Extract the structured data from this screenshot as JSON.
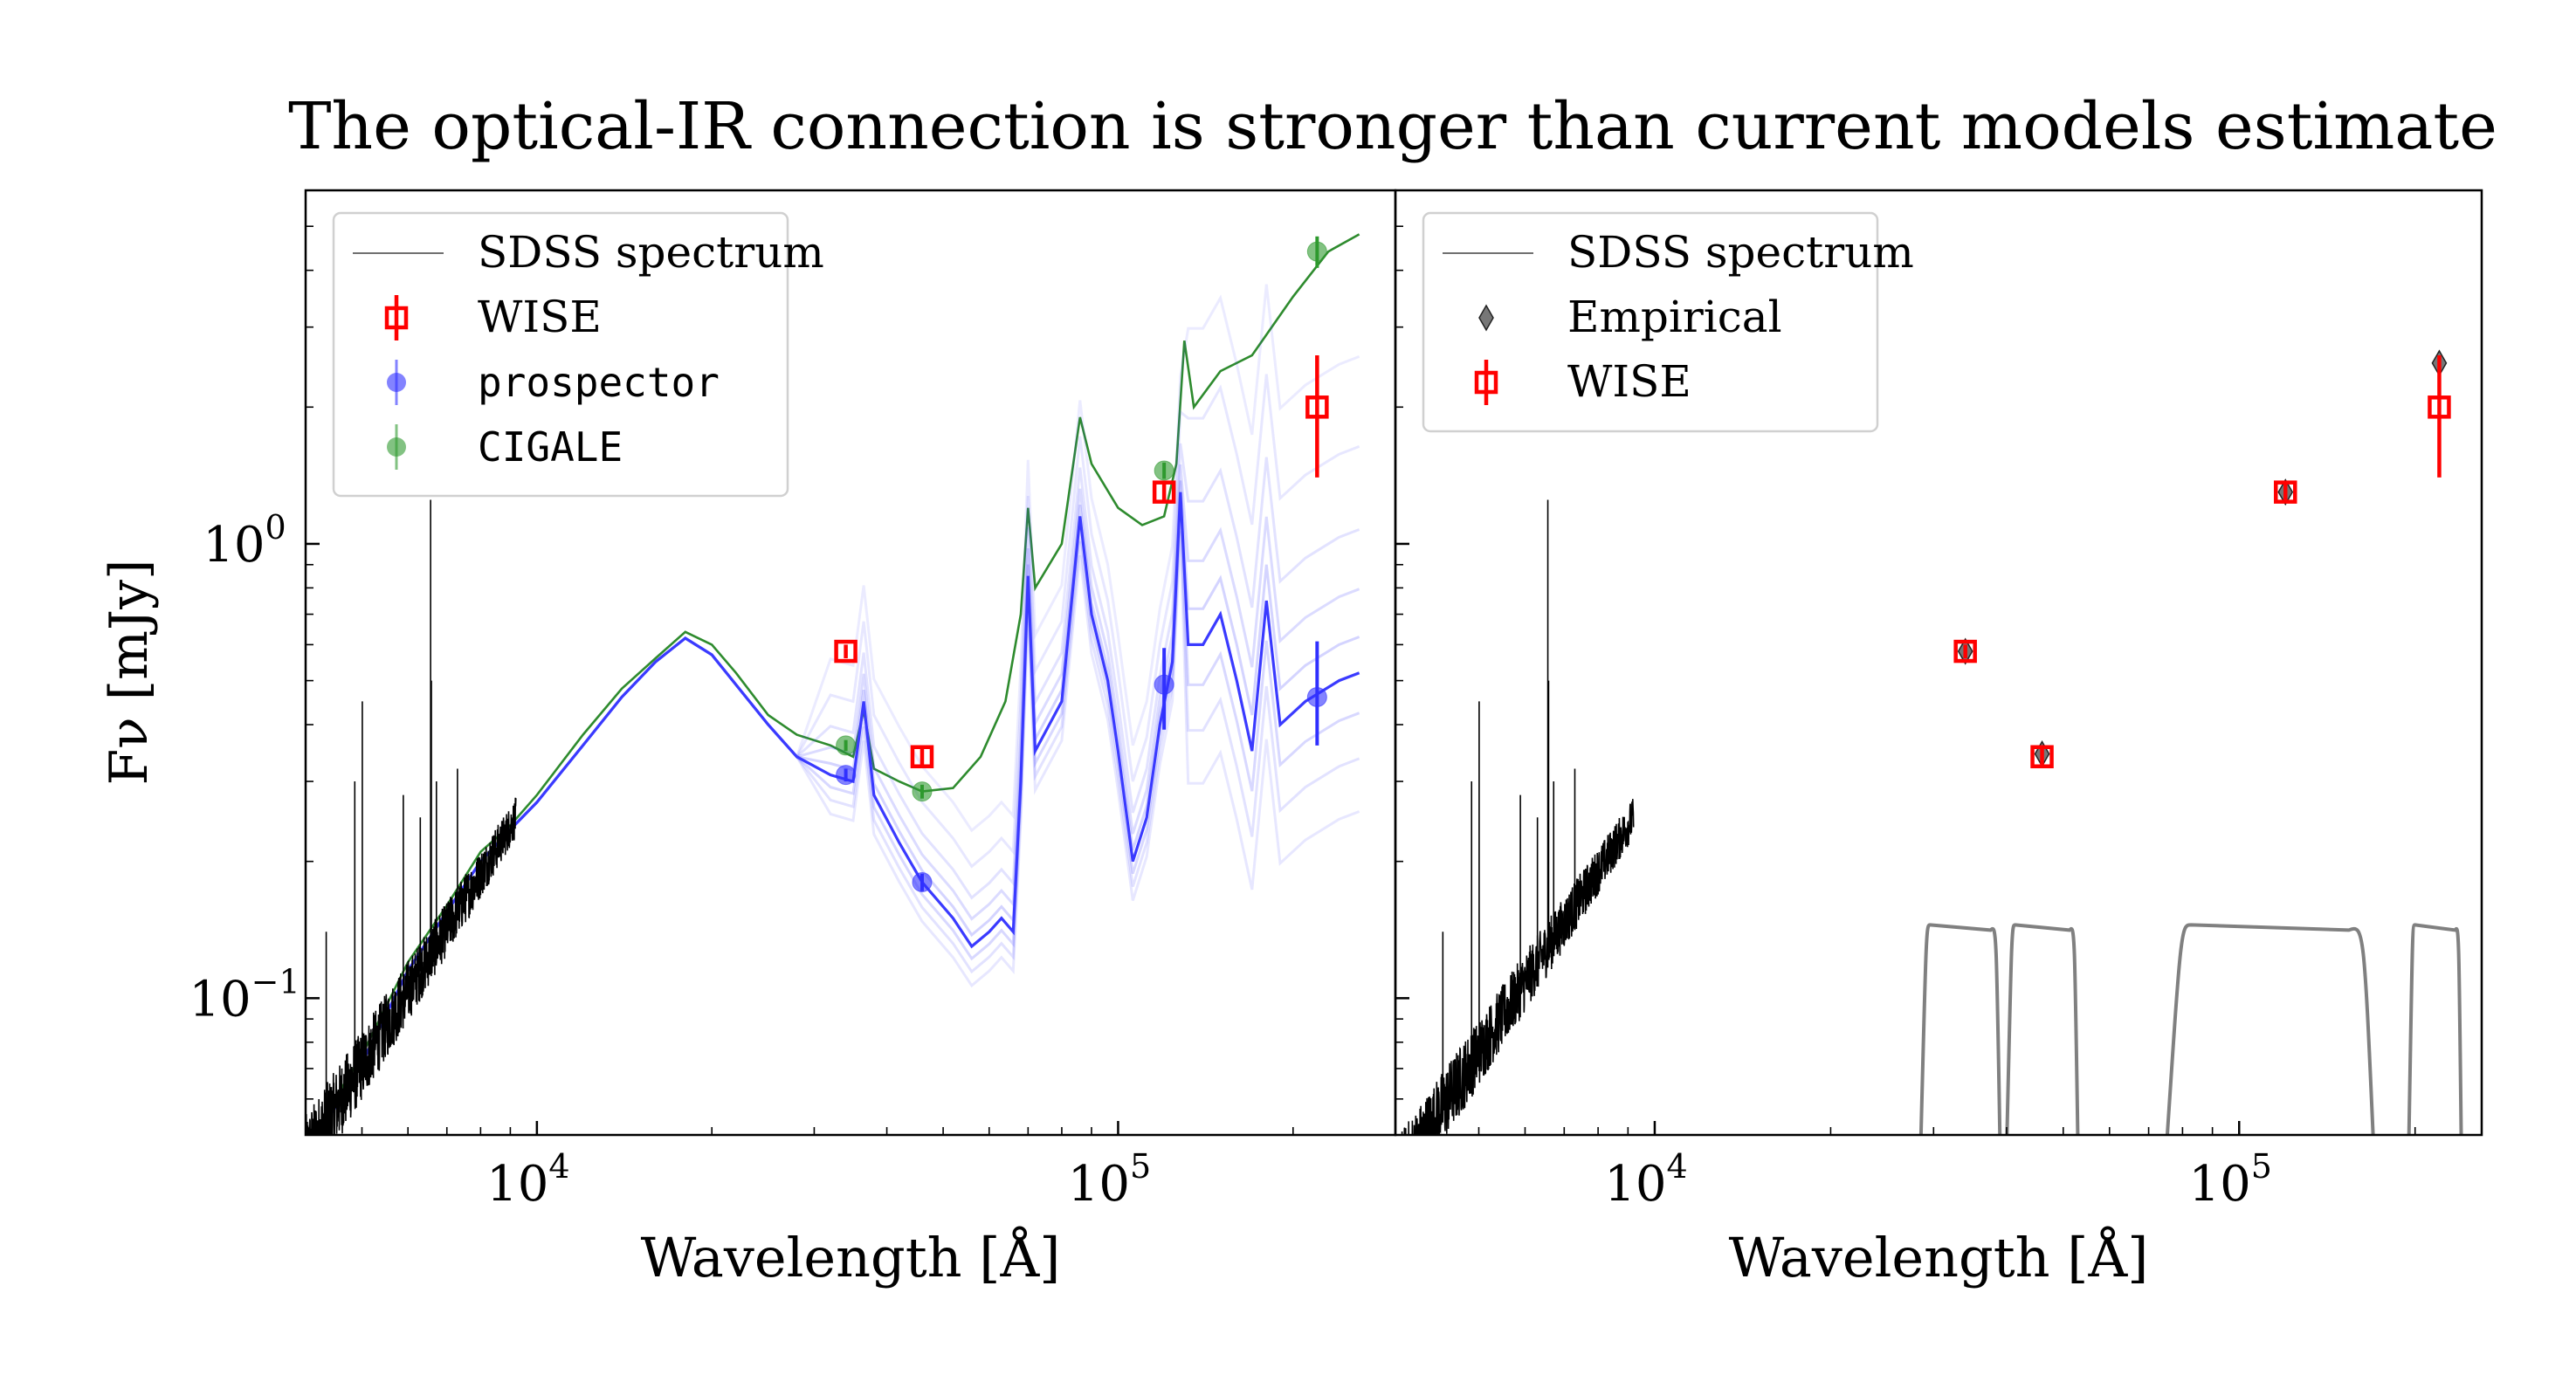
{
  "figure": {
    "title": "The optical-IR connection is stronger than current models estimate",
    "ylabel": "Fν [mJy]"
  },
  "chart_data": [
    {
      "type": "line",
      "panel": "left",
      "xlabel": "Wavelength [Å]",
      "ylabel": "Fν [mJy]",
      "xscale": "log",
      "yscale": "log",
      "xlim": [
        4000,
        300000
      ],
      "ylim": [
        0.05,
        6
      ],
      "xticks": [
        {
          "value": 10000,
          "base": "10",
          "exp": "4"
        },
        {
          "value": 100000,
          "base": "10",
          "exp": "5"
        }
      ],
      "yticks": [
        {
          "value": 0.1,
          "base": "10",
          "exp": "−1"
        },
        {
          "value": 1,
          "base": "10",
          "exp": "0"
        }
      ],
      "legend": {
        "location": "upper-left",
        "entries": [
          {
            "label": "SDSS spectrum",
            "marker": "line",
            "color": "#707070"
          },
          {
            "label": "WISE",
            "marker": "open-square",
            "color": "#ff0000"
          },
          {
            "label": "prospector",
            "marker": "circle",
            "color": "#3030ff"
          },
          {
            "label": "CIGALE",
            "marker": "circle",
            "color": "#2e9a2e"
          }
        ]
      },
      "series": [
        {
          "id": "wise",
          "color": "#ff0000",
          "marker": "open-square",
          "points": [
            {
              "x": 34000,
              "y": 0.58,
              "err_lo": 0.02,
              "err_hi": 0.02
            },
            {
              "x": 46000,
              "y": 0.34,
              "err_lo": 0.015,
              "err_hi": 0.015
            },
            {
              "x": 120000,
              "y": 1.3,
              "err_lo": 0.06,
              "err_hi": 0.06
            },
            {
              "x": 220000,
              "y": 2.0,
              "err_lo": 0.6,
              "err_hi": 0.6
            }
          ]
        },
        {
          "id": "prospector",
          "color": "#3030ff",
          "marker": "circle",
          "points": [
            {
              "x": 34000,
              "y": 0.31,
              "err_lo": 0.01,
              "err_hi": 0.01
            },
            {
              "x": 46000,
              "y": 0.18,
              "err_lo": 0.008,
              "err_hi": 0.008
            },
            {
              "x": 120000,
              "y": 0.49,
              "err_lo": 0.1,
              "err_hi": 0.1
            },
            {
              "x": 220000,
              "y": 0.46,
              "err_lo": 0.1,
              "err_hi": 0.15
            }
          ]
        },
        {
          "id": "cigale",
          "color": "#2e9a2e",
          "marker": "circle",
          "points": [
            {
              "x": 34000,
              "y": 0.36,
              "err_lo": 0.01,
              "err_hi": 0.01
            },
            {
              "x": 46000,
              "y": 0.285,
              "err_lo": 0.01,
              "err_hi": 0.01
            },
            {
              "x": 120000,
              "y": 1.45,
              "err_lo": 0.06,
              "err_hi": 0.06
            },
            {
              "x": 220000,
              "y": 4.4,
              "err_lo": 0.35,
              "err_hi": 0.35
            }
          ]
        },
        {
          "id": "cigale-model",
          "color": "#2e8b2e",
          "curve": [
            [
              4000,
              0.047
            ],
            [
              5000,
              0.075
            ],
            [
              6000,
              0.12
            ],
            [
              7000,
              0.16
            ],
            [
              8000,
              0.21
            ],
            [
              9000,
              0.24
            ],
            [
              10000,
              0.28
            ],
            [
              12000,
              0.38
            ],
            [
              14000,
              0.48
            ],
            [
              16000,
              0.56
            ],
            [
              18000,
              0.64
            ],
            [
              20000,
              0.6
            ],
            [
              22000,
              0.52
            ],
            [
              25000,
              0.42
            ],
            [
              28000,
              0.38
            ],
            [
              32000,
              0.36
            ],
            [
              35000,
              0.34
            ],
            [
              36500,
              0.43
            ],
            [
              38000,
              0.32
            ],
            [
              42000,
              0.3
            ],
            [
              46000,
              0.285
            ],
            [
              52000,
              0.29
            ],
            [
              58000,
              0.34
            ],
            [
              64000,
              0.45
            ],
            [
              68000,
              0.7
            ],
            [
              70000,
              1.2
            ],
            [
              72000,
              0.8
            ],
            [
              80000,
              1.0
            ],
            [
              86000,
              1.9
            ],
            [
              90000,
              1.5
            ],
            [
              100000,
              1.2
            ],
            [
              110000,
              1.1
            ],
            [
              120000,
              1.15
            ],
            [
              126000,
              1.5
            ],
            [
              130000,
              2.8
            ],
            [
              135000,
              2.0
            ],
            [
              150000,
              2.4
            ],
            [
              170000,
              2.6
            ],
            [
              200000,
              3.5
            ],
            [
              230000,
              4.4
            ],
            [
              260000,
              4.8
            ]
          ]
        },
        {
          "id": "prospector-model",
          "color": "#3a3aff",
          "curve": [
            [
              4000,
              0.045
            ],
            [
              5000,
              0.072
            ],
            [
              6000,
              0.115
            ],
            [
              7000,
              0.155
            ],
            [
              8000,
              0.2
            ],
            [
              9000,
              0.235
            ],
            [
              10000,
              0.27
            ],
            [
              12000,
              0.36
            ],
            [
              14000,
              0.46
            ],
            [
              16000,
              0.55
            ],
            [
              18000,
              0.62
            ],
            [
              20000,
              0.57
            ],
            [
              22000,
              0.49
            ],
            [
              25000,
              0.4
            ],
            [
              28000,
              0.34
            ],
            [
              32000,
              0.31
            ],
            [
              35000,
              0.3
            ],
            [
              36500,
              0.45
            ],
            [
              38000,
              0.28
            ],
            [
              42000,
              0.22
            ],
            [
              46000,
              0.18
            ],
            [
              52000,
              0.15
            ],
            [
              56000,
              0.13
            ],
            [
              60000,
              0.14
            ],
            [
              63000,
              0.15
            ],
            [
              66000,
              0.14
            ],
            [
              68000,
              0.3
            ],
            [
              70000,
              0.85
            ],
            [
              72000,
              0.35
            ],
            [
              80000,
              0.45
            ],
            [
              86000,
              1.15
            ],
            [
              90000,
              0.7
            ],
            [
              96000,
              0.5
            ],
            [
              100000,
              0.35
            ],
            [
              106000,
              0.2
            ],
            [
              112000,
              0.25
            ],
            [
              118000,
              0.4
            ],
            [
              124000,
              0.55
            ],
            [
              128000,
              1.3
            ],
            [
              132000,
              0.6
            ],
            [
              140000,
              0.6
            ],
            [
              150000,
              0.7
            ],
            [
              160000,
              0.5
            ],
            [
              170000,
              0.35
            ],
            [
              180000,
              0.75
            ],
            [
              190000,
              0.4
            ],
            [
              210000,
              0.45
            ],
            [
              240000,
              0.5
            ],
            [
              260000,
              0.52
            ]
          ]
        },
        {
          "id": "sdss-spectrum",
          "color": "#000000",
          "range": [
            4000,
            9200
          ],
          "start_flux": 0.045,
          "end_flux": 0.25
        }
      ]
    },
    {
      "type": "scatter",
      "panel": "right",
      "xlabel": "Wavelength [Å]",
      "xscale": "log",
      "yscale": "log",
      "xlim": [
        3600,
        260000
      ],
      "ylim": [
        0.05,
        6
      ],
      "xticks": [
        {
          "value": 10000,
          "base": "10",
          "exp": "4"
        },
        {
          "value": 100000,
          "base": "10",
          "exp": "5"
        }
      ],
      "legend": {
        "location": "upper-left",
        "entries": [
          {
            "label": "SDSS spectrum",
            "marker": "line",
            "color": "#707070"
          },
          {
            "label": "Empirical",
            "marker": "diamond",
            "color": "#555555"
          },
          {
            "label": "WISE",
            "marker": "open-square",
            "color": "#ff0000"
          }
        ]
      },
      "series": [
        {
          "id": "empirical",
          "color": "#555555",
          "marker": "diamond",
          "points": [
            {
              "x": 34000,
              "y": 0.58
            },
            {
              "x": 46000,
              "y": 0.345
            },
            {
              "x": 120000,
              "y": 1.3
            },
            {
              "x": 220000,
              "y": 2.5
            }
          ]
        },
        {
          "id": "wise",
          "color": "#ff0000",
          "marker": "open-square",
          "points": [
            {
              "x": 34000,
              "y": 0.58,
              "err_lo": 0.02,
              "err_hi": 0.02
            },
            {
              "x": 46000,
              "y": 0.34,
              "err_lo": 0.015,
              "err_hi": 0.015
            },
            {
              "x": 120000,
              "y": 1.3,
              "err_lo": 0.06,
              "err_hi": 0.06
            },
            {
              "x": 220000,
              "y": 2.0,
              "err_lo": 0.6,
              "err_hi": 0.6
            }
          ]
        },
        {
          "id": "sdss-spectrum",
          "color": "#000000",
          "range": [
            3600,
            9200
          ],
          "start_flux": 0.04,
          "end_flux": 0.25
        },
        {
          "id": "wise-filter-curves",
          "color": "#808080",
          "bands": [
            {
              "lo": 28500,
              "hi": 39000,
              "peak": 0.145,
              "floor": 0.05
            },
            {
              "lo": 40000,
              "hi": 53000,
              "peak": 0.145,
              "floor": 0.05
            },
            {
              "lo": 75000,
              "hi": 170000,
              "peak": 0.145,
              "floor": 0.05
            },
            {
              "lo": 195000,
              "hi": 240000,
              "peak": 0.145,
              "floor": 0.05
            }
          ]
        }
      ]
    }
  ]
}
